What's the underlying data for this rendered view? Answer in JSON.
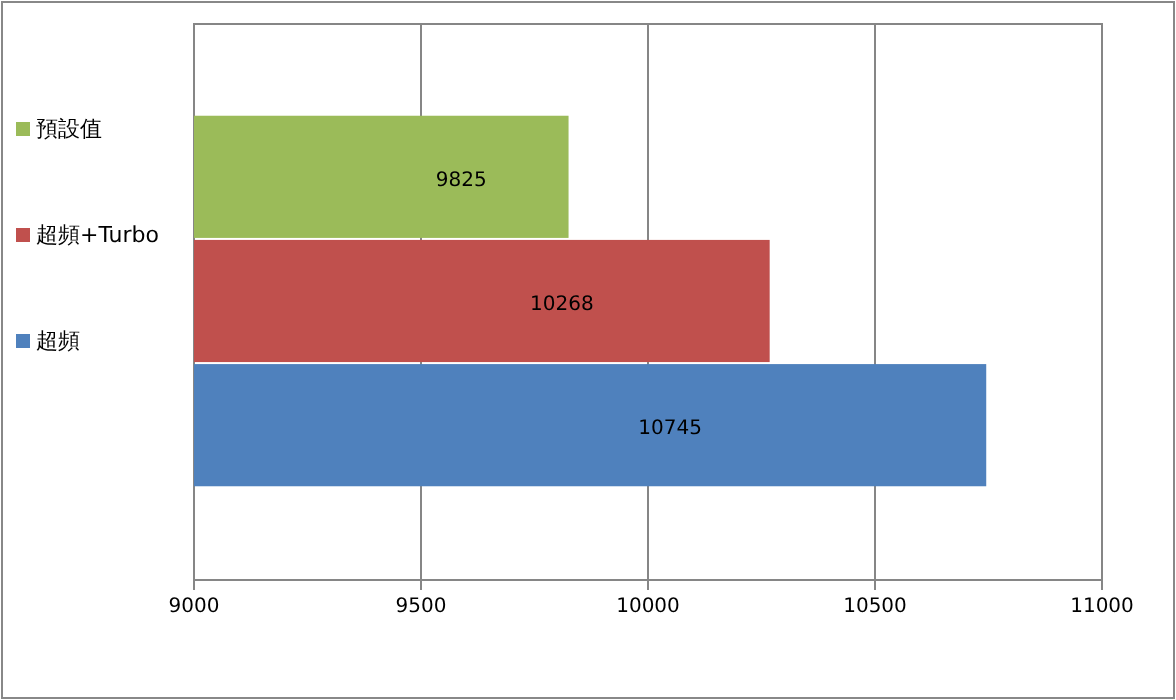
{
  "chart_data": {
    "type": "bar",
    "orientation": "horizontal",
    "categories": [
      null
    ],
    "series": [
      {
        "name": "預設值",
        "color": "#9bbb59",
        "values": [
          9825
        ]
      },
      {
        "name": "超頻+Turbo",
        "color": "#c0504d",
        "values": [
          10268
        ]
      },
      {
        "name": "超頻",
        "color": "#4f81bd",
        "values": [
          10745
        ]
      }
    ],
    "xlim": [
      9000,
      11000
    ],
    "xticks": [
      9000,
      9500,
      10000,
      10500,
      11000
    ],
    "grid": "x",
    "legend": "left",
    "data_labels": true
  }
}
